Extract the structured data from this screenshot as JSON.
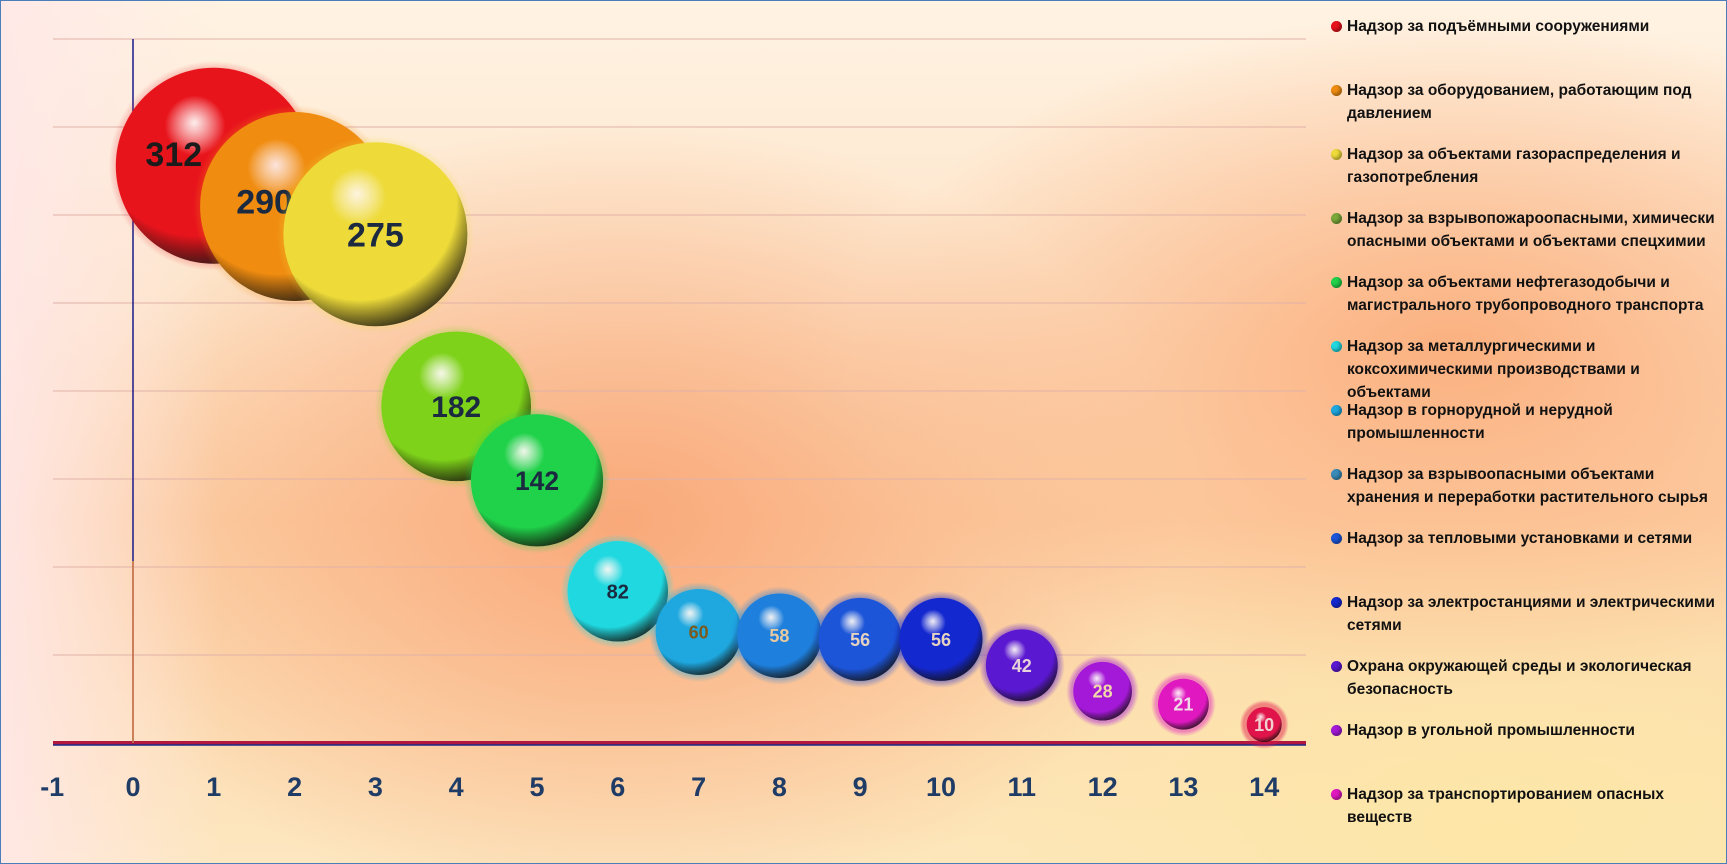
{
  "chart_data": {
    "type": "bubble",
    "xlim": [
      -1,
      14
    ],
    "ylim": [
      0,
      320
    ],
    "x_ticks": [
      "-1",
      "0",
      "1",
      "2",
      "3",
      "4",
      "5",
      "6",
      "7",
      "8",
      "9",
      "10",
      "11",
      "12",
      "13",
      "14"
    ],
    "grid": "horizontal",
    "legend_position": "right",
    "series": [
      {
        "name": "Надзор за подъёмными сооружениями",
        "x": 1,
        "y": 312,
        "size": 312,
        "label": "312",
        "color": "#e8141c",
        "label_color": "#1b1b1b"
      },
      {
        "name": "Надзор за оборудованием, работающим под давлением",
        "x": 2,
        "y": 290,
        "size": 290,
        "label": "290",
        "color": "#f08c10",
        "label_color": "#1b2a40"
      },
      {
        "name": "Надзор за объектами газораспределения и газопотребления",
        "x": 3,
        "y": 275,
        "size": 275,
        "label": "275",
        "color": "#eedb3a",
        "label_color": "#1b2a40"
      },
      {
        "name": "Надзор за взрывопожароопасными, химически опасными объектами и объектами спецхимии",
        "x": 4,
        "y": 182,
        "size": 182,
        "label": "182",
        "color": "#7ed21a",
        "label_color": "#1b2a40"
      },
      {
        "name": "Надзор за объектами нефтегазодобычи и магистрального трубопроводного транспорта",
        "x": 5,
        "y": 142,
        "size": 142,
        "label": "142",
        "color": "#20d24a",
        "label_color": "#1b2a40"
      },
      {
        "name": "Надзор за металлургическими и коксохимическими производствами и объектами",
        "x": 6,
        "y": 82,
        "size": 82,
        "label": "82",
        "color": "#20d8e0",
        "label_color": "#1b2a40"
      },
      {
        "name": "Надзор в горнорудной и нерудной промышленности",
        "x": 7,
        "y": 60,
        "size": 60,
        "label": "60",
        "color": "#1ea8df",
        "label_color": "#7a5a1e"
      },
      {
        "name": "Надзор за взрывоопасными объектами хранения и переработки растительного сырья",
        "x": 8,
        "y": 58,
        "size": 58,
        "label": "58",
        "color": "#1e7fdc",
        "label_color": "#e6c9a0"
      },
      {
        "name": "Надзор за тепловыми установками и сетями",
        "x": 9,
        "y": 56,
        "size": 56,
        "label": "56",
        "color": "#1c55d8",
        "label_color": "#e6d2c0"
      },
      {
        "name": "Надзор за электростанциями и электрическими сетями",
        "x": 10,
        "y": 56,
        "size": 56,
        "label": "56",
        "color": "#1428d0",
        "label_color": "#e6d2c0"
      },
      {
        "name": "Охрана окружающей среды и экологическая безопасность",
        "x": 11,
        "y": 42,
        "size": 42,
        "label": "42",
        "color": "#5a18d0",
        "label_color": "#e6d2d8"
      },
      {
        "name": "Надзор в угольной промышленности",
        "x": 12,
        "y": 28,
        "size": 28,
        "label": "28",
        "color": "#a418d8",
        "label_color": "#f0d8a8"
      },
      {
        "name": "Надзор за транспортированием опасных веществ",
        "x": 13,
        "y": 21,
        "size": 21,
        "label": "21",
        "color": "#e018c0",
        "label_color": "#f0d8e8"
      },
      {
        "name": "",
        "x": 14,
        "y": 10,
        "size": 10,
        "label": "10",
        "color": "#e0144a",
        "label_color": "#f0d0d0"
      }
    ]
  },
  "legend": {
    "items": [
      {
        "text": "Надзор за подъёмными сооружениями",
        "color": "#e8141c"
      },
      {
        "text": "Надзор за оборудованием, работающим под давлением",
        "color": "#f08c10"
      },
      {
        "text": "Надзор за объектами газораспределения и газопотребления",
        "color": "#eedb3a"
      },
      {
        "text": "Надзор за взрывопожароопасными, химически опасными объектами и объектами спецхимии",
        "color": "#7aa83a"
      },
      {
        "text": "Надзор за объектами нефтегазодобычи и магистрального трубопроводного транспорта",
        "color": "#20d24a"
      },
      {
        "text": "Надзор за металлургическими и коксохимическими производствами и объектами",
        "color": "#20d8e0"
      },
      {
        "text": "Надзор в горнорудной и нерудной промышленности",
        "color": "#1ea8df"
      },
      {
        "text": "Надзор за взрывоопасными объектами хранения и переработки растительного сырья",
        "color": "#3a8cb8"
      },
      {
        "text": "Надзор за тепловыми установками и сетями",
        "color": "#1c55d8"
      },
      {
        "text": "Надзор за электростанциями и электрическими сетями",
        "color": "#1428d0"
      },
      {
        "text": "Охрана окружающей среды и экологическая безопасность",
        "color": "#5a18d0"
      },
      {
        "text": "Надзор в угольной промышленности",
        "color": "#a418d8"
      },
      {
        "text": "Надзор за транспортированием опасных веществ",
        "color": "#e018c0"
      }
    ]
  }
}
